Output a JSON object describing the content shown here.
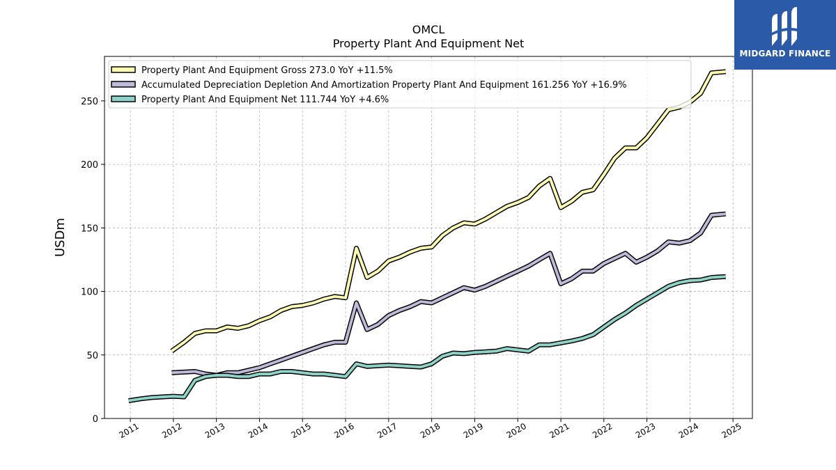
{
  "chart_data": {
    "type": "line",
    "title": "OMCL",
    "subtitle": "Property Plant And Equipment Net",
    "ylabel": "USDm",
    "xlabel": "",
    "xlim": [
      2010.4,
      2025.45
    ],
    "ylim": [
      0,
      285
    ],
    "yticks": [
      0,
      50,
      100,
      150,
      200,
      250
    ],
    "xticks": [
      "2011",
      "2012",
      "2013",
      "2014",
      "2015",
      "2016",
      "2017",
      "2018",
      "2019",
      "2020",
      "2021",
      "2022",
      "2023",
      "2024",
      "2025"
    ],
    "grid": true,
    "legend_position": "top-left",
    "series": [
      {
        "name": "Property Plant And Equipment Gross  273.0 YoY +11.5%",
        "color": "#ffffb3",
        "x": [
          2011.96,
          2012.25,
          2012.5,
          2012.75,
          2013.0,
          2013.25,
          2013.5,
          2013.75,
          2014.0,
          2014.25,
          2014.5,
          2014.75,
          2015.0,
          2015.25,
          2015.5,
          2015.75,
          2016.0,
          2016.25,
          2016.5,
          2016.75,
          2017.0,
          2017.25,
          2017.5,
          2017.75,
          2018.0,
          2018.25,
          2018.5,
          2018.75,
          2019.0,
          2019.25,
          2019.5,
          2019.75,
          2020.0,
          2020.25,
          2020.5,
          2020.75,
          2021.0,
          2021.25,
          2021.5,
          2021.75,
          2022.0,
          2022.25,
          2022.5,
          2022.75,
          2023.0,
          2023.25,
          2023.5,
          2023.75,
          2024.0,
          2024.25,
          2024.5,
          2024.83
        ],
        "values": [
          53,
          60,
          67,
          69,
          69,
          72,
          71,
          73,
          77,
          80,
          85,
          88,
          89,
          91,
          94,
          96,
          95,
          134,
          111,
          116,
          124,
          127,
          131,
          134,
          135,
          144,
          150,
          154,
          153,
          157,
          162,
          167,
          170,
          174,
          183,
          189,
          166,
          171,
          178,
          180,
          192,
          205,
          213,
          213,
          221,
          232,
          243,
          245,
          249,
          256,
          272,
          273
        ]
      },
      {
        "name": "Accumulated Depreciation Depletion And Amortization Property Plant And Equipment  161.256 YoY +16.9%",
        "color": "#bebada",
        "x": [
          2011.96,
          2012.5,
          2012.75,
          2013.0,
          2013.25,
          2013.5,
          2013.75,
          2014.0,
          2014.25,
          2014.5,
          2014.75,
          2015.0,
          2015.25,
          2015.5,
          2015.75,
          2016.0,
          2016.25,
          2016.5,
          2016.75,
          2017.0,
          2017.25,
          2017.5,
          2017.75,
          2018.0,
          2018.25,
          2018.5,
          2018.75,
          2019.0,
          2019.25,
          2019.5,
          2019.75,
          2020.0,
          2020.25,
          2020.5,
          2020.75,
          2021.0,
          2021.25,
          2021.5,
          2021.75,
          2022.0,
          2022.25,
          2022.5,
          2022.75,
          2023.0,
          2023.25,
          2023.5,
          2023.75,
          2024.0,
          2024.25,
          2024.5,
          2024.83
        ],
        "values": [
          36,
          37,
          35,
          34,
          36,
          36,
          38,
          40,
          43,
          46,
          49,
          52,
          55,
          58,
          60,
          60,
          91,
          70,
          74,
          81,
          85,
          88,
          92,
          91,
          95,
          99,
          103,
          101,
          104,
          108,
          112,
          116,
          120,
          125,
          130,
          106,
          110,
          116,
          116,
          122,
          126,
          130,
          123,
          127,
          132,
          139,
          138,
          140,
          146,
          160,
          161
        ]
      },
      {
        "name": "Property Plant And Equipment Net  111.744 YoY +4.6%",
        "color": "#8dd3c7",
        "x": [
          2010.96,
          2011.25,
          2011.5,
          2011.75,
          2012.0,
          2012.25,
          2012.5,
          2012.75,
          2013.0,
          2013.25,
          2013.5,
          2013.75,
          2014.0,
          2014.25,
          2014.5,
          2014.75,
          2015.0,
          2015.25,
          2015.5,
          2015.75,
          2016.0,
          2016.25,
          2016.5,
          2016.75,
          2017.0,
          2017.25,
          2017.5,
          2017.75,
          2018.0,
          2018.25,
          2018.5,
          2018.75,
          2019.0,
          2019.25,
          2019.5,
          2019.75,
          2020.0,
          2020.25,
          2020.5,
          2020.75,
          2021.0,
          2021.25,
          2021.5,
          2021.75,
          2022.0,
          2022.25,
          2022.5,
          2022.75,
          2023.0,
          2023.25,
          2023.5,
          2023.75,
          2024.0,
          2024.25,
          2024.5,
          2024.83
        ],
        "values": [
          14,
          15.5,
          16.5,
          17,
          17.5,
          17,
          30,
          33,
          34,
          34,
          33,
          33,
          35,
          35,
          37,
          37,
          36,
          35,
          35,
          34,
          33,
          43,
          41,
          41.5,
          42,
          41.5,
          41,
          40.5,
          43,
          49,
          51.5,
          51,
          52,
          52.5,
          53,
          55,
          54,
          53,
          58,
          58,
          59.5,
          61,
          63,
          66,
          72,
          78,
          83,
          89,
          94,
          99,
          104,
          107,
          108.5,
          109,
          111,
          111.7
        ]
      }
    ]
  },
  "logo": {
    "text": "MIDGARD FINANCE"
  }
}
